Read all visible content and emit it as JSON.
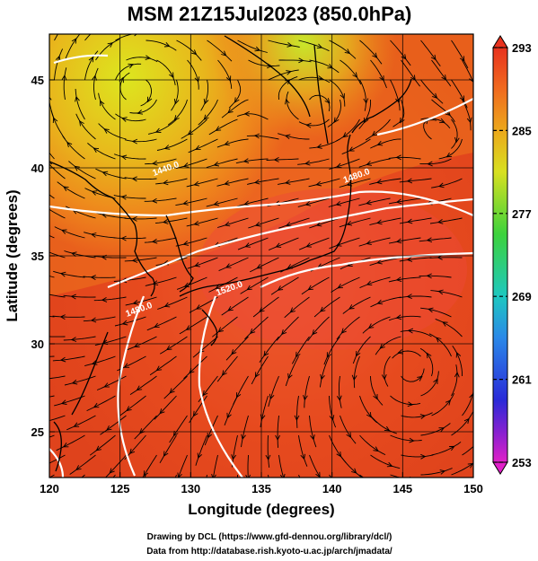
{
  "title": "MSM 21Z15Jul2023 (850.0hPa)",
  "map": {
    "xlabel": "Longitude (degrees)",
    "ylabel": "Latitude  (degrees)",
    "xlim": [
      120,
      150
    ],
    "ylim": [
      22.4,
      47.6
    ],
    "x_ticks": [
      120,
      125,
      130,
      135,
      140,
      145,
      150
    ],
    "y_ticks": [
      25,
      30,
      35,
      40,
      45
    ],
    "x_tick_labels": [
      "120",
      "125",
      "130",
      "135",
      "140",
      "145",
      "150"
    ],
    "y_tick_labels": [
      "25",
      "30",
      "35",
      "40",
      "45"
    ],
    "contour_labels": [
      {
        "text": "1440.0",
        "lon": 128.3,
        "lat": 39.8
      },
      {
        "text": "1480.0",
        "lon": 141.8,
        "lat": 39.4
      },
      {
        "text": "1480.0",
        "lon": 126.4,
        "lat": 31.8
      },
      {
        "text": "1520.0",
        "lon": 132.8,
        "lat": 33.0
      }
    ]
  },
  "colorbar": {
    "min": 253,
    "max": 293,
    "tick_values": [
      293,
      285,
      277,
      269,
      261,
      253
    ],
    "tick_labels": [
      "293",
      "285",
      "277",
      "269",
      "261",
      "253"
    ]
  },
  "credits": {
    "line1": "Drawing by DCL (https://www.gfd-dennou.org/library/dcl/)",
    "line2": "Data from http://database.rish.kyoto-u.ac.jp/arch/jmadata/"
  },
  "colors": {
    "warm": "#e8321e",
    "mid": "#f06a1e",
    "yellow": "#d8e020",
    "contour": "#ffffff",
    "coast": "#000000"
  }
}
